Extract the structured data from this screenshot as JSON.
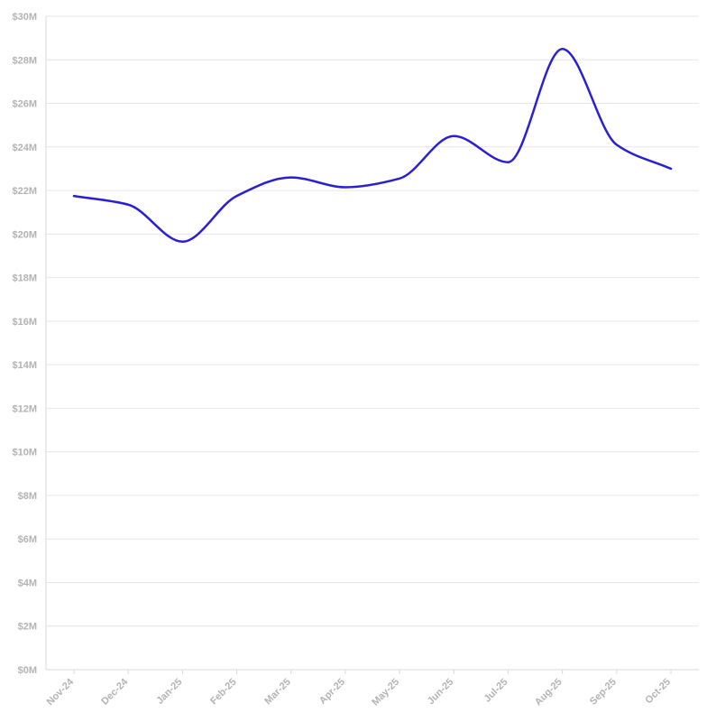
{
  "chart_data": {
    "type": "line",
    "title": "",
    "xlabel": "",
    "ylabel": "",
    "categories": [
      "Nov-24",
      "Dec-24",
      "Jan-25",
      "Feb-25",
      "Mar-25",
      "Apr-25",
      "May-25",
      "Jun-25",
      "Jul-25",
      "Aug-25",
      "Sep-25",
      "Oct-25"
    ],
    "series": [
      {
        "name": "",
        "color": "#2a1fd1",
        "values": [
          21.75,
          21.35,
          19.65,
          21.75,
          22.6,
          22.15,
          22.55,
          24.5,
          23.3,
          28.5,
          24.1,
          23.0
        ]
      }
    ],
    "ylim": [
      0,
      30
    ],
    "y_ticks": [
      0,
      2,
      4,
      6,
      8,
      10,
      12,
      14,
      16,
      18,
      20,
      22,
      24,
      26,
      28,
      30
    ],
    "y_tick_labels": [
      "$0M",
      "$2M",
      "$4M",
      "$6M",
      "$8M",
      "$10M",
      "$12M",
      "$14M",
      "$16M",
      "$18M",
      "$20M",
      "$22M",
      "$24M",
      "$26M",
      "$28M",
      "$30M"
    ],
    "grid": true,
    "legend": "none"
  }
}
